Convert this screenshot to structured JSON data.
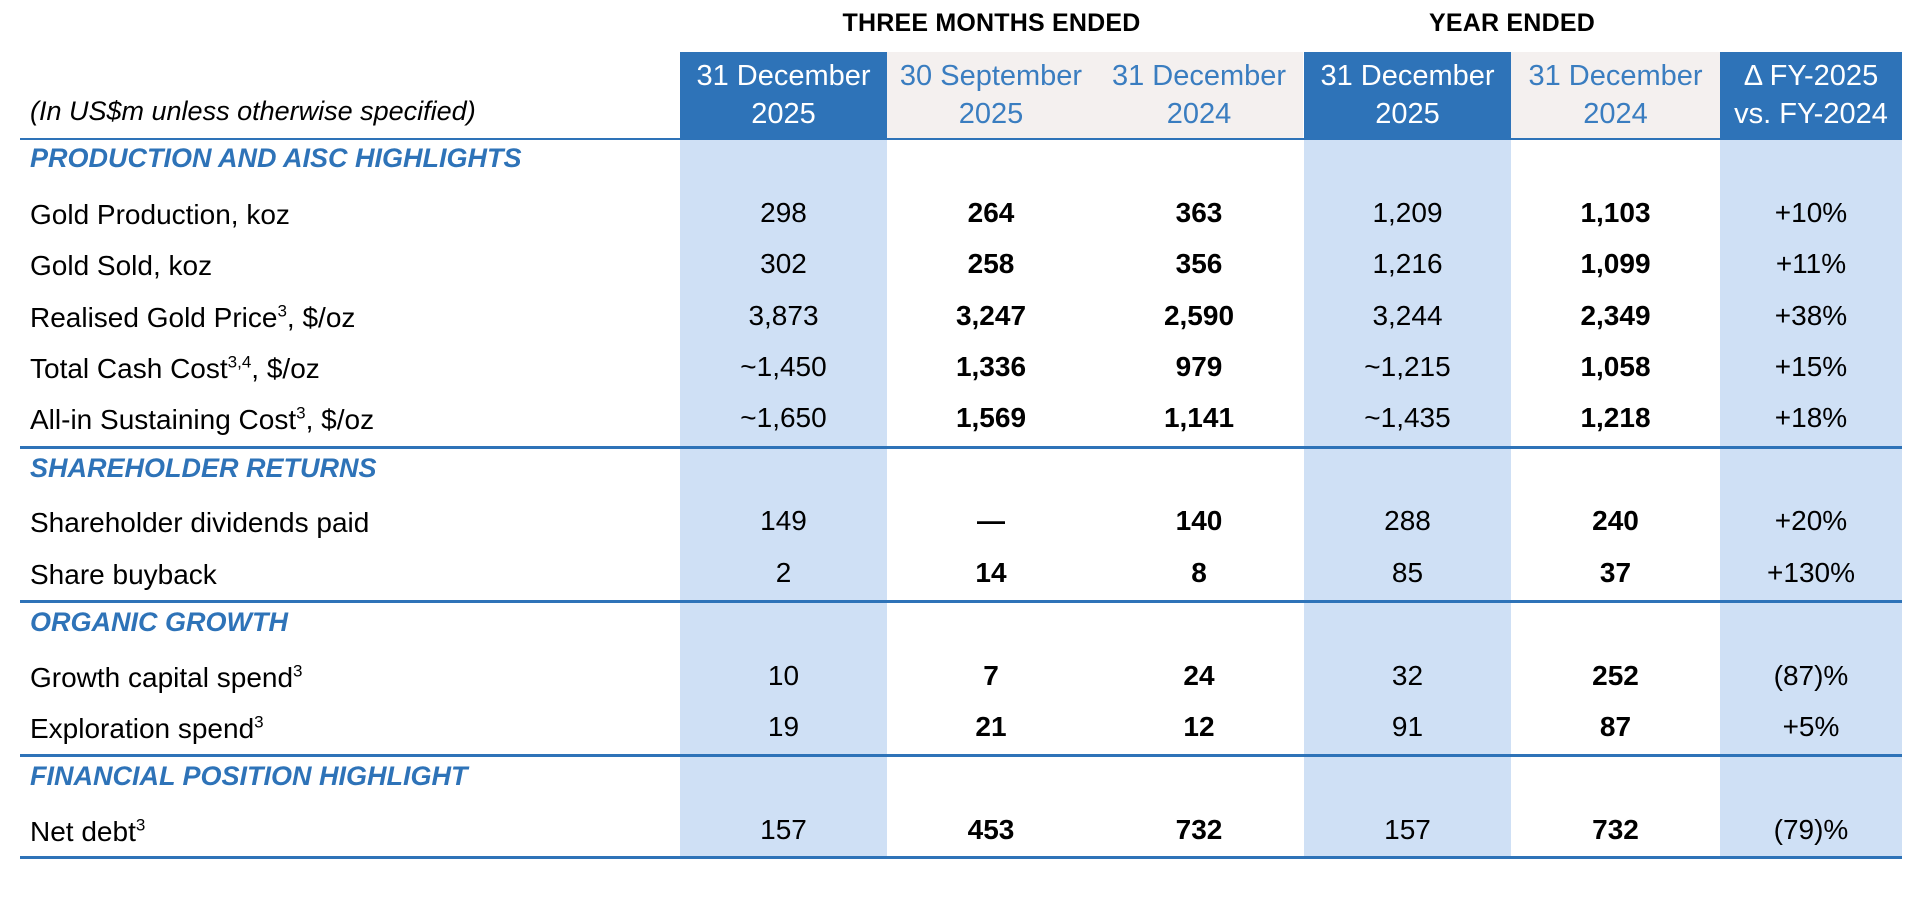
{
  "group_headers": {
    "three_months": "THREE MONTHS ENDED",
    "year_ended": "YEAR ENDED"
  },
  "column_headers": [
    {
      "line1": "31 December",
      "line2": "2025"
    },
    {
      "line1": "30 September",
      "line2": "2025"
    },
    {
      "line1": "31 December",
      "line2": "2024"
    },
    {
      "line1": "31 December",
      "line2": "2025"
    },
    {
      "line1": "31 December",
      "line2": "2024"
    },
    {
      "line1": "Δ FY-2025",
      "line2": "vs. FY-2024"
    }
  ],
  "units_note": "(In US$m unless otherwise specified)",
  "sections": [
    {
      "title": "PRODUCTION AND AISC HIGHLIGHTS",
      "rows": [
        {
          "label": "Gold Production, koz",
          "sup": "",
          "suffix": "",
          "values": [
            "298",
            "264",
            "363",
            "1,209",
            "1,103",
            "+10%"
          ]
        },
        {
          "label": "Gold Sold, koz",
          "sup": "",
          "suffix": "",
          "values": [
            "302",
            "258",
            "356",
            "1,216",
            "1,099",
            "+11%"
          ]
        },
        {
          "label": "Realised Gold Price",
          "sup": "3",
          "suffix": ", $/oz",
          "values": [
            "3,873",
            "3,247",
            "2,590",
            "3,244",
            "2,349",
            "+38%"
          ]
        },
        {
          "label": "Total Cash Cost",
          "sup": "3,4",
          "suffix": ", $/oz",
          "values": [
            "~1,450",
            "1,336",
            "979",
            "~1,215",
            "1,058",
            "+15%"
          ]
        },
        {
          "label": "All-in Sustaining Cost",
          "sup": "3",
          "suffix": ", $/oz",
          "values": [
            "~1,650",
            "1,569",
            "1,141",
            "~1,435",
            "1,218",
            "+18%"
          ]
        }
      ]
    },
    {
      "title": "SHAREHOLDER RETURNS",
      "rows": [
        {
          "label": "Shareholder dividends paid",
          "sup": "",
          "suffix": "",
          "values": [
            "149",
            "—",
            "140",
            "288",
            "240",
            "+20%"
          ]
        },
        {
          "label": "Share buyback",
          "sup": "",
          "suffix": "",
          "values": [
            "2",
            "14",
            "8",
            "85",
            "37",
            "+130%"
          ]
        }
      ]
    },
    {
      "title": "ORGANIC GROWTH",
      "rows": [
        {
          "label": "Growth capital spend",
          "sup": "3",
          "suffix": "",
          "values": [
            "10",
            "7",
            "24",
            "32",
            "252",
            "(87)%"
          ]
        },
        {
          "label": "Exploration spend",
          "sup": "3",
          "suffix": "",
          "values": [
            "19",
            "21",
            "12",
            "91",
            "87",
            "+5%"
          ]
        }
      ]
    },
    {
      "title": "FINANCIAL POSITION HIGHLIGHT",
      "rows": [
        {
          "label": "Net debt",
          "sup": "3",
          "suffix": "",
          "values": [
            "157",
            "453",
            "732",
            "157",
            "732",
            "(79)%"
          ]
        }
      ]
    }
  ]
}
